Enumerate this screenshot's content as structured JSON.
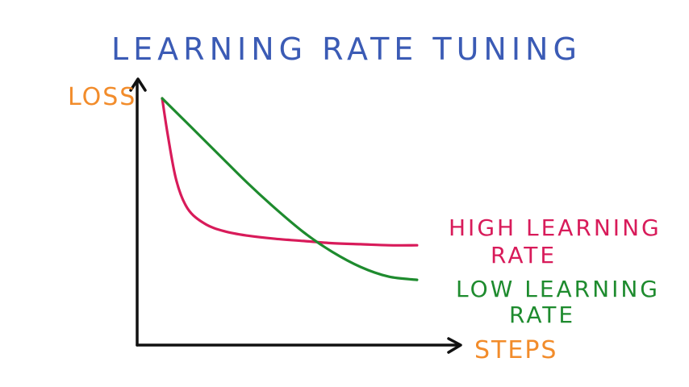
{
  "colors": {
    "title": "#3b5bb5",
    "axis_label": "#f28c2b",
    "axis": "#111111",
    "high_series": "#d81b5a",
    "low_series": "#1e8b2e"
  },
  "chart_data": {
    "type": "line",
    "title": "LEARNING RATE TUNING",
    "xlabel": "STEPS",
    "ylabel": "LOSS",
    "xlim": [
      0,
      10
    ],
    "ylim": [
      0,
      10
    ],
    "grid": false,
    "legend_placement": "right, inline labels",
    "series": [
      {
        "name": "HIGH LEARNING RATE",
        "name_lines": [
          "HIGH LEARNING",
          "RATE"
        ],
        "color": "#d81b5a",
        "x": [
          0,
          0.2,
          0.5,
          0.9,
          1.5,
          2.2,
          3.0,
          4.0,
          5.0,
          6.0,
          7.0,
          8.0,
          9.0
        ],
        "y": [
          10,
          8.3,
          6.2,
          4.9,
          4.2,
          3.85,
          3.65,
          3.5,
          3.4,
          3.3,
          3.25,
          3.2,
          3.2
        ]
      },
      {
        "name": "LOW LEARNING RATE",
        "name_lines": [
          "LOW LEARNING",
          "RATE"
        ],
        "color": "#1e8b2e",
        "x": [
          0,
          1.0,
          2.0,
          3.0,
          4.0,
          5.0,
          6.0,
          7.0,
          8.0,
          9.0
        ],
        "y": [
          10,
          8.7,
          7.4,
          6.1,
          4.9,
          3.8,
          2.9,
          2.2,
          1.75,
          1.6
        ]
      }
    ]
  }
}
